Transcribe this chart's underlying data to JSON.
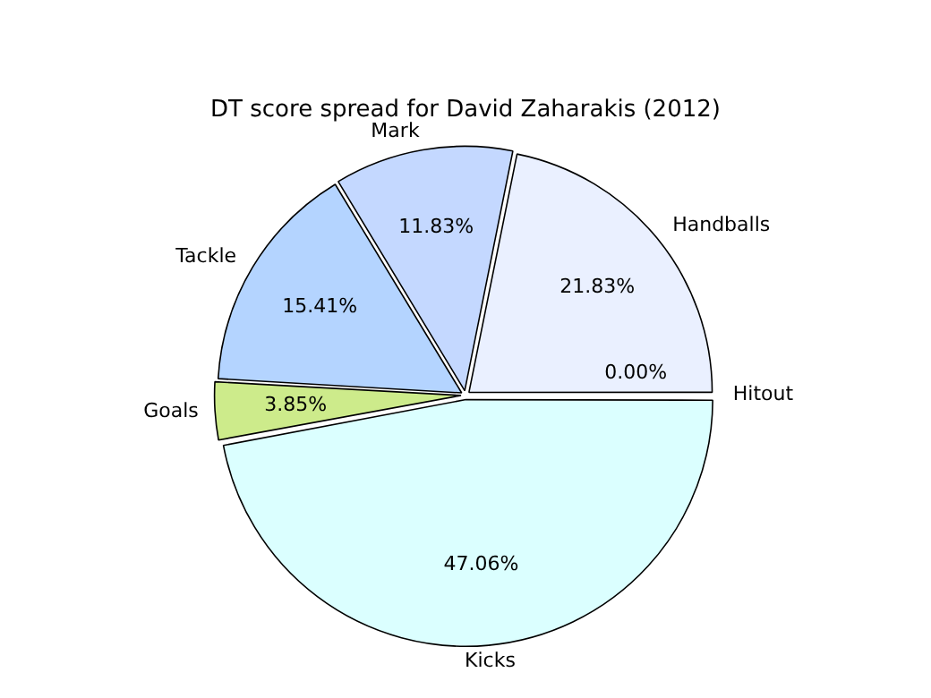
{
  "chart_data": {
    "type": "pie",
    "title": "DT score spread for David Zaharakis (2012)",
    "categories": [
      "Handballs",
      "Mark",
      "Tackle",
      "Goals",
      "Kicks",
      "Hitout"
    ],
    "values": [
      21.83,
      11.83,
      15.41,
      3.85,
      47.06,
      0.0
    ],
    "colors": [
      "#eaf0ff",
      "#c4d8ff",
      "#b4d4ff",
      "#cdeb8b",
      "#dbffff",
      "#eaffea"
    ],
    "value_labels": [
      "21.83%",
      "11.83%",
      "15.41%",
      "3.85%",
      "47.06%",
      "0.00%"
    ],
    "legend": false
  }
}
